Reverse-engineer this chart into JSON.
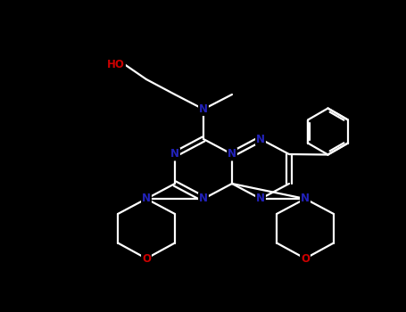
{
  "bg_color": "#000000",
  "atom_N_color": "#2222bb",
  "atom_O_color": "#cc0000",
  "bond_color": "#ffffff",
  "lw": 1.6,
  "dbl_off": 0.055,
  "figsize": [
    4.55,
    3.5
  ],
  "dpi": 100,
  "xlim": [
    0,
    9.1
  ],
  "ylim": [
    0,
    7.0
  ]
}
